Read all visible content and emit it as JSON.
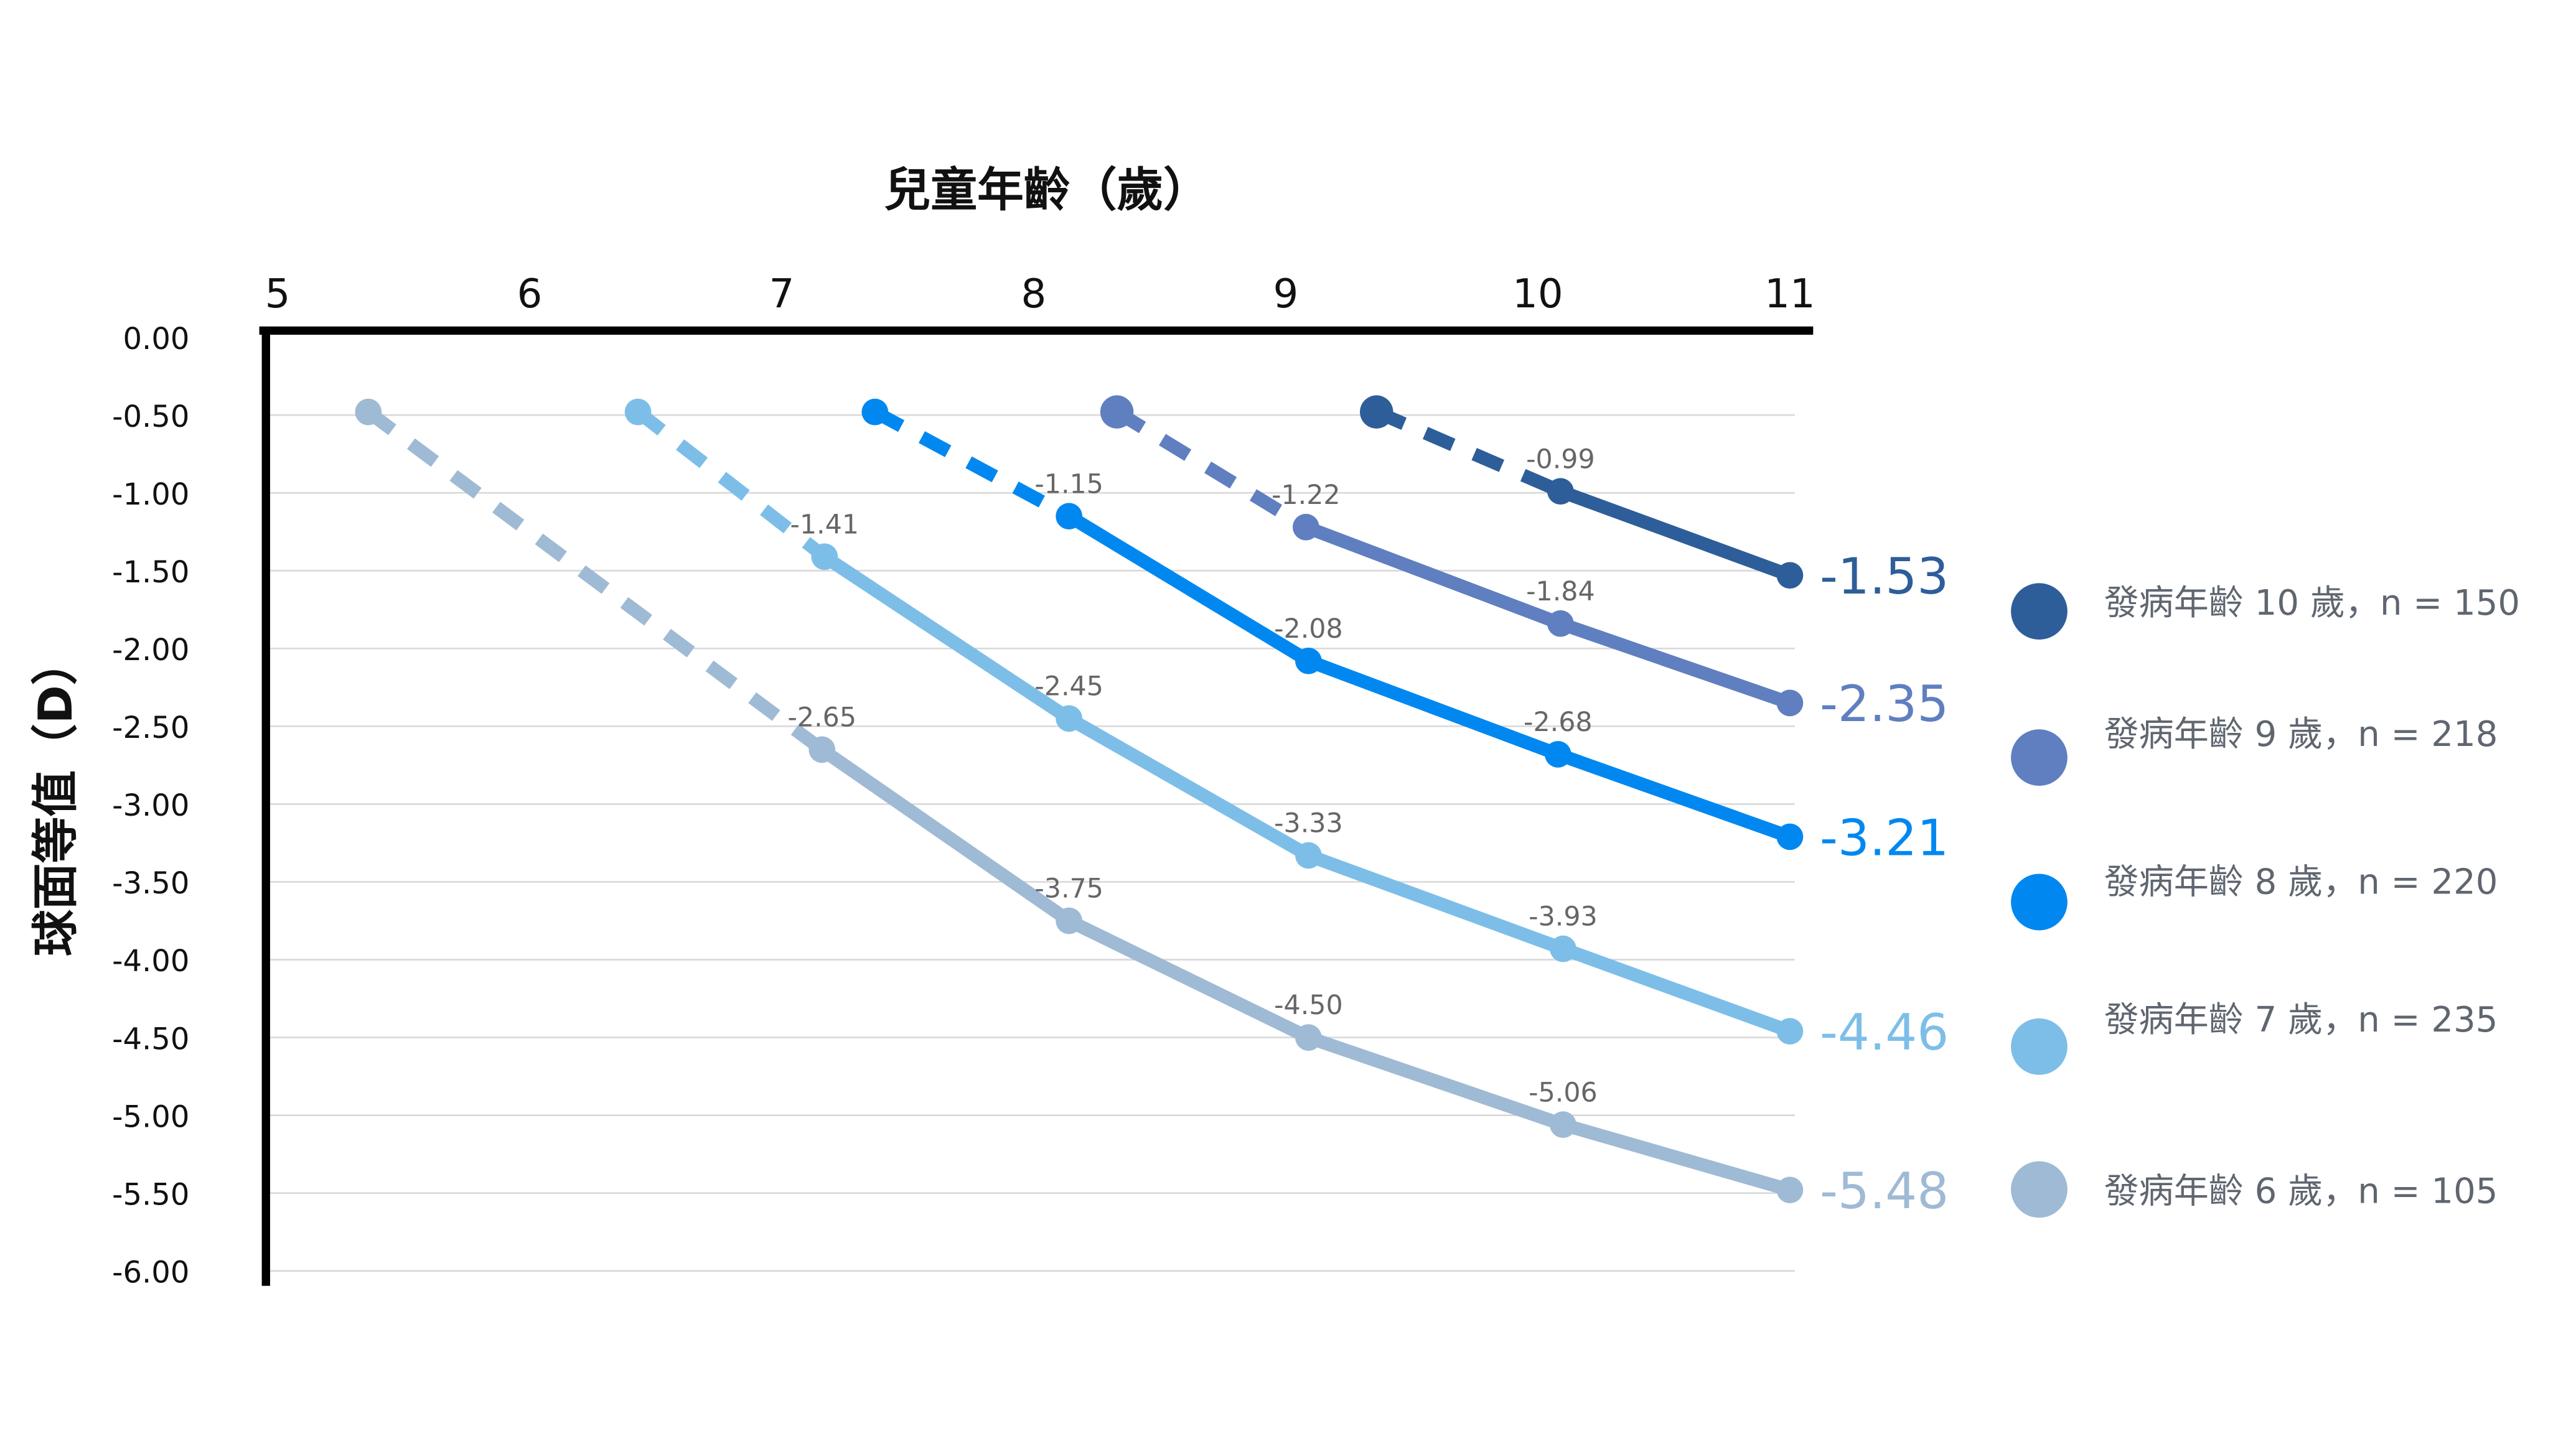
{
  "chart_data": {
    "type": "line",
    "xlabel": "兒童年齡（歲）",
    "ylabel": "球面等值（D）",
    "xlim": [
      5,
      11
    ],
    "ylim": [
      -6,
      0
    ],
    "x_ticks": [
      "5",
      "6",
      "7",
      "8",
      "9",
      "10",
      "11"
    ],
    "y_ticks": [
      "0.00",
      "-0.50",
      "-1.00",
      "-1.50",
      "-2.00",
      "-2.50",
      "-3.00",
      "-3.50",
      "-4.00",
      "-4.50",
      "-5.00",
      "-5.50",
      "-6.00"
    ],
    "grid": true,
    "legend_position": "right",
    "series": [
      {
        "name": "發病年齡 10 歲，n = 150",
        "color": "#2E5E99",
        "x": [
          9.36,
          10.09,
          11
        ],
        "y": [
          -0.48,
          -0.99,
          -1.53
        ],
        "labels": [
          "",
          "-0.99",
          "-1.53"
        ]
      },
      {
        "name": "發病年齡 9 歲，n = 218",
        "color": "#5F7FC0",
        "x": [
          8.33,
          9.08,
          10.09,
          11
        ],
        "y": [
          -0.48,
          -1.22,
          -1.84,
          -2.35
        ],
        "labels": [
          "",
          "-1.22",
          "-1.84",
          "-2.35"
        ]
      },
      {
        "name": "發病年齡 8 歲，n = 220",
        "color": "#0088F0",
        "x": [
          7.37,
          8.14,
          9.09,
          10.08,
          11
        ],
        "y": [
          -0.48,
          -1.15,
          -2.08,
          -2.68,
          -3.21
        ],
        "labels": [
          "",
          "-1.15",
          "-2.08",
          "-2.68",
          "-3.21"
        ]
      },
      {
        "name": "發病年齡 7 歲，n = 235",
        "color": "#7DBEE8",
        "x": [
          6.43,
          7.17,
          8.14,
          9.09,
          10.1,
          11
        ],
        "y": [
          -0.48,
          -1.41,
          -2.45,
          -3.33,
          -3.93,
          -4.46
        ],
        "labels": [
          "",
          "-1.41",
          "-2.45",
          "-3.33",
          "-3.93",
          "-4.46"
        ]
      },
      {
        "name": "發病年齡 6 歲，n = 105",
        "color": "#9FBAD4",
        "x": [
          5.36,
          7.16,
          8.14,
          9.09,
          10.1,
          11
        ],
        "y": [
          -0.48,
          -2.65,
          -3.75,
          -4.5,
          -5.06,
          -5.48
        ],
        "labels": [
          "",
          "-2.65",
          "-3.75",
          "-4.50",
          "-5.06",
          "-5.48"
        ]
      }
    ]
  }
}
